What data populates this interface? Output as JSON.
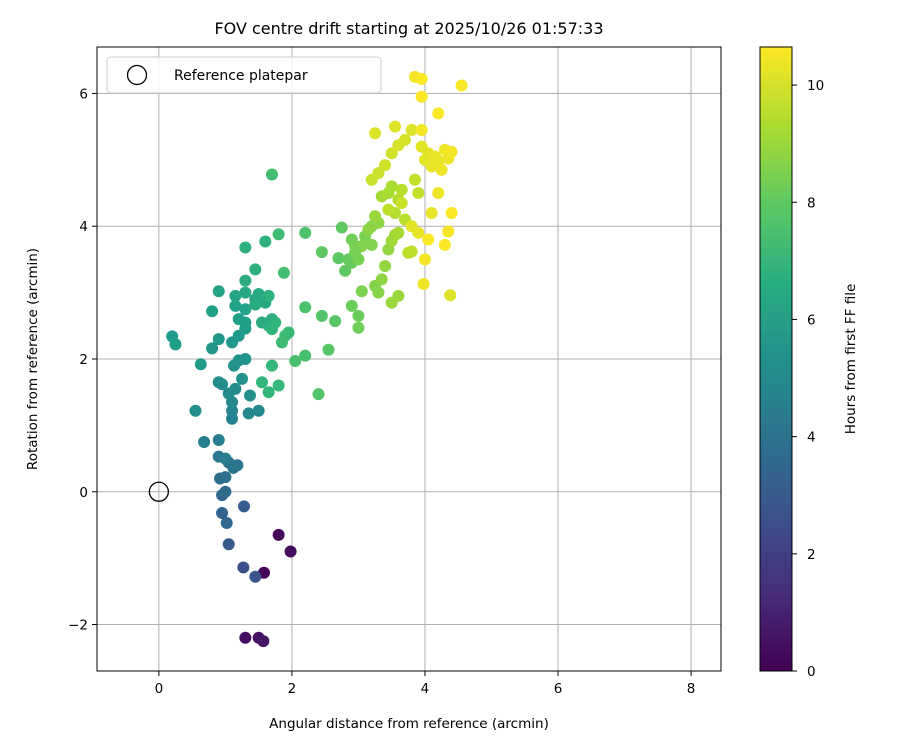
{
  "chart_data": {
    "type": "scatter",
    "title": "FOV centre drift starting at 2025/10/26 01:57:33",
    "xlabel": "Angular distance from reference (arcmin)",
    "ylabel": "Rotation from reference (arcmin)",
    "xlim": [
      -0.93,
      8.45
    ],
    "ylim": [
      -2.7,
      6.7
    ],
    "xticks": [
      0,
      2,
      4,
      6,
      8
    ],
    "xtick_labels": [
      "0",
      "2",
      "4",
      "6",
      "8"
    ],
    "yticks": [
      -2,
      0,
      2,
      4,
      6
    ],
    "ytick_labels": [
      "−2",
      "0",
      "2",
      "4",
      "6"
    ],
    "grid": true,
    "legend": {
      "location": "top-left",
      "entries": [
        "Reference platepar"
      ]
    },
    "reference_point": {
      "x": 0,
      "y": 0,
      "label": "Reference platepar"
    },
    "colorbar": {
      "label": "Hours from first FF file",
      "colormap": "viridis",
      "range": [
        0,
        10.65
      ],
      "ticks": [
        0,
        2,
        4,
        6,
        8,
        10
      ],
      "tick_labels": [
        "0",
        "2",
        "4",
        "6",
        "8",
        "10"
      ]
    },
    "points": [
      [
        1.58,
        -1.22,
        0.1
      ],
      [
        1.8,
        -0.65,
        0.2
      ],
      [
        1.98,
        -0.9,
        0.3
      ],
      [
        1.3,
        -2.2,
        0.4
      ],
      [
        1.5,
        -2.2,
        0.5
      ],
      [
        1.57,
        -2.25,
        0.6
      ],
      [
        1.27,
        -1.14,
        2.6
      ],
      [
        1.45,
        -1.28,
        2.8
      ],
      [
        1.05,
        -0.79,
        3.0
      ],
      [
        1.28,
        -0.22,
        3.1
      ],
      [
        0.95,
        -0.32,
        3.4
      ],
      [
        1.02,
        -0.47,
        3.5
      ],
      [
        0.95,
        -0.05,
        3.6
      ],
      [
        1.0,
        0.0,
        3.7
      ],
      [
        0.92,
        0.2,
        3.8
      ],
      [
        1.0,
        0.22,
        3.9
      ],
      [
        1.05,
        0.44,
        4.0
      ],
      [
        1.12,
        0.36,
        4.1
      ],
      [
        1.18,
        0.4,
        4.2
      ],
      [
        0.9,
        0.53,
        4.3
      ],
      [
        1.0,
        0.5,
        4.4
      ],
      [
        0.9,
        0.78,
        4.5
      ],
      [
        0.68,
        0.75,
        4.6
      ],
      [
        1.1,
        1.1,
        4.7
      ],
      [
        1.1,
        1.22,
        4.8
      ],
      [
        1.35,
        1.18,
        4.9
      ],
      [
        1.5,
        1.22,
        5.0
      ],
      [
        1.1,
        1.35,
        5.0
      ],
      [
        1.05,
        1.48,
        5.1
      ],
      [
        1.15,
        1.55,
        5.1
      ],
      [
        0.9,
        1.65,
        5.2
      ],
      [
        0.95,
        1.62,
        5.2
      ],
      [
        0.55,
        1.22,
        5.3
      ],
      [
        1.37,
        1.45,
        5.3
      ],
      [
        1.25,
        1.7,
        5.4
      ],
      [
        1.13,
        1.9,
        5.4
      ],
      [
        1.2,
        1.98,
        5.5
      ],
      [
        1.3,
        2.0,
        5.5
      ],
      [
        0.8,
        2.16,
        5.6
      ],
      [
        0.9,
        2.3,
        5.6
      ],
      [
        1.1,
        2.25,
        5.7
      ],
      [
        1.2,
        2.35,
        5.7
      ],
      [
        1.3,
        2.46,
        5.8
      ],
      [
        0.63,
        1.92,
        5.8
      ],
      [
        0.2,
        2.34,
        5.8
      ],
      [
        0.25,
        2.22,
        5.9
      ],
      [
        1.2,
        2.6,
        5.9
      ],
      [
        1.3,
        2.55,
        6.0
      ],
      [
        0.8,
        2.72,
        6.0
      ],
      [
        1.15,
        2.8,
        6.1
      ],
      [
        1.3,
        2.75,
        6.1
      ],
      [
        0.9,
        3.02,
        6.2
      ],
      [
        1.15,
        2.95,
        6.2
      ],
      [
        1.3,
        3.0,
        6.3
      ],
      [
        1.45,
        2.9,
        6.3
      ],
      [
        1.5,
        2.98,
        6.4
      ],
      [
        1.6,
        2.85,
        6.4
      ],
      [
        1.45,
        2.82,
        6.5
      ],
      [
        1.55,
        2.55,
        6.5
      ],
      [
        1.65,
        2.5,
        6.6
      ],
      [
        1.7,
        2.6,
        6.6
      ],
      [
        1.3,
        3.18,
        6.6
      ],
      [
        1.45,
        3.35,
        6.7
      ],
      [
        1.3,
        3.68,
        6.7
      ],
      [
        1.6,
        3.77,
        6.8
      ],
      [
        1.65,
        2.95,
        6.8
      ],
      [
        1.7,
        2.45,
        6.9
      ],
      [
        1.75,
        2.55,
        6.9
      ],
      [
        1.55,
        1.65,
        7.0
      ],
      [
        1.65,
        1.5,
        7.0
      ],
      [
        1.7,
        1.9,
        7.1
      ],
      [
        1.8,
        1.6,
        7.1
      ],
      [
        1.9,
        2.35,
        7.2
      ],
      [
        1.95,
        2.4,
        7.2
      ],
      [
        1.85,
        2.25,
        7.3
      ],
      [
        1.8,
        3.88,
        7.3
      ],
      [
        1.7,
        4.78,
        7.4
      ],
      [
        1.88,
        3.3,
        7.4
      ],
      [
        2.05,
        1.97,
        7.5
      ],
      [
        2.2,
        2.05,
        7.5
      ],
      [
        2.2,
        3.9,
        7.6
      ],
      [
        2.2,
        2.78,
        7.6
      ],
      [
        2.4,
        1.47,
        7.7
      ],
      [
        2.45,
        2.65,
        7.7
      ],
      [
        2.55,
        2.14,
        7.8
      ],
      [
        2.65,
        2.57,
        7.8
      ],
      [
        2.45,
        3.61,
        7.9
      ],
      [
        2.7,
        3.52,
        7.9
      ],
      [
        2.75,
        3.98,
        8.0
      ],
      [
        2.8,
        3.33,
        8.0
      ],
      [
        2.85,
        3.5,
        8.1
      ],
      [
        2.9,
        3.45,
        8.1
      ],
      [
        2.9,
        2.8,
        8.2
      ],
      [
        3.0,
        2.65,
        8.2
      ],
      [
        3.0,
        2.47,
        8.3
      ],
      [
        2.9,
        3.8,
        8.3
      ],
      [
        2.95,
        3.7,
        8.4
      ],
      [
        3.0,
        3.5,
        8.4
      ],
      [
        3.05,
        3.02,
        8.5
      ],
      [
        3.1,
        3.85,
        8.5
      ],
      [
        3.2,
        3.72,
        8.6
      ],
      [
        3.25,
        3.1,
        8.6
      ],
      [
        3.3,
        3.0,
        8.7
      ],
      [
        3.2,
        4.0,
        8.7
      ],
      [
        3.3,
        4.05,
        8.8
      ],
      [
        3.35,
        3.2,
        8.8
      ],
      [
        3.4,
        3.4,
        8.9
      ],
      [
        3.45,
        3.65,
        8.9
      ],
      [
        3.5,
        2.85,
        9.0
      ],
      [
        3.6,
        2.95,
        9.0
      ],
      [
        3.5,
        3.78,
        9.1
      ],
      [
        3.55,
        3.87,
        9.1
      ],
      [
        3.6,
        3.9,
        9.2
      ],
      [
        3.35,
        4.45,
        9.2
      ],
      [
        3.45,
        4.5,
        9.3
      ],
      [
        3.5,
        4.6,
        9.3
      ],
      [
        3.55,
        4.2,
        9.4
      ],
      [
        3.6,
        4.4,
        9.4
      ],
      [
        3.65,
        4.55,
        9.5
      ],
      [
        3.7,
        4.1,
        9.5
      ],
      [
        3.75,
        3.6,
        9.6
      ],
      [
        3.8,
        3.62,
        9.6
      ],
      [
        3.85,
        4.7,
        9.7
      ],
      [
        3.9,
        4.5,
        9.7
      ],
      [
        3.2,
        4.7,
        9.8
      ],
      [
        3.3,
        4.8,
        9.8
      ],
      [
        3.4,
        4.92,
        9.9
      ],
      [
        3.5,
        5.1,
        9.9
      ],
      [
        3.6,
        5.22,
        10.0
      ],
      [
        3.7,
        5.3,
        10.0
      ],
      [
        3.8,
        5.45,
        10.1
      ],
      [
        3.55,
        5.5,
        10.1
      ],
      [
        3.25,
        5.4,
        10.1
      ],
      [
        3.95,
        5.2,
        10.2
      ],
      [
        4.0,
        5.0,
        10.2
      ],
      [
        4.05,
        5.1,
        10.2
      ],
      [
        4.1,
        4.9,
        10.3
      ],
      [
        4.15,
        5.05,
        10.3
      ],
      [
        4.2,
        4.98,
        10.3
      ],
      [
        4.25,
        4.85,
        10.4
      ],
      [
        4.3,
        5.15,
        10.4
      ],
      [
        4.35,
        5.02,
        10.4
      ],
      [
        4.4,
        5.12,
        10.5
      ],
      [
        3.95,
        5.45,
        10.5
      ],
      [
        3.85,
        6.25,
        10.5
      ],
      [
        3.95,
        6.22,
        10.6
      ],
      [
        3.95,
        5.95,
        10.6
      ],
      [
        4.55,
        6.12,
        10.6
      ],
      [
        4.2,
        5.7,
        10.6
      ],
      [
        4.05,
        3.8,
        10.6
      ],
      [
        4.3,
        3.72,
        10.6
      ],
      [
        4.0,
        3.5,
        10.5
      ],
      [
        3.98,
        3.13,
        10.4
      ],
      [
        4.38,
        2.96,
        10.1
      ],
      [
        3.9,
        3.9,
        10.3
      ],
      [
        4.1,
        4.2,
        10.3
      ],
      [
        4.35,
        3.92,
        10.5
      ],
      [
        4.4,
        4.2,
        10.6
      ],
      [
        4.2,
        4.5,
        10.4
      ],
      [
        3.8,
        4.0,
        10.2
      ],
      [
        3.65,
        4.35,
        9.8
      ],
      [
        3.45,
        4.25,
        9.6
      ],
      [
        3.25,
        4.15,
        9.0
      ],
      [
        3.15,
        3.95,
        8.8
      ],
      [
        3.05,
        3.7,
        8.6
      ],
      [
        2.95,
        3.6,
        8.4
      ]
    ]
  }
}
